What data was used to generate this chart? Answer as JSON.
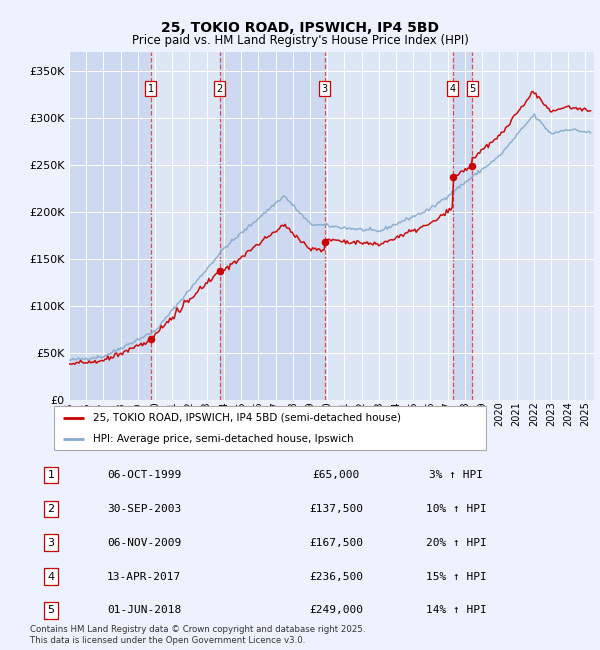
{
  "title_line1": "25, TOKIO ROAD, IPSWICH, IP4 5BD",
  "title_line2": "Price paid vs. HM Land Registry's House Price Index (HPI)",
  "legend_label_red": "25, TOKIO ROAD, IPSWICH, IP4 5BD (semi-detached house)",
  "legend_label_blue": "HPI: Average price, semi-detached house, Ipswich",
  "footer": "Contains HM Land Registry data © Crown copyright and database right 2025.\nThis data is licensed under the Open Government Licence v3.0.",
  "sale_points": [
    {
      "label": "1",
      "date": "06-OCT-1999",
      "price": 65000,
      "pct": "3%",
      "x_year": 1999.76
    },
    {
      "label": "2",
      "date": "30-SEP-2003",
      "price": 137500,
      "pct": "10%",
      "x_year": 2003.75
    },
    {
      "label": "3",
      "date": "06-NOV-2009",
      "price": 167500,
      "pct": "20%",
      "x_year": 2009.85
    },
    {
      "label": "4",
      "date": "13-APR-2017",
      "price": 236500,
      "pct": "15%",
      "x_year": 2017.28
    },
    {
      "label": "5",
      "date": "01-JUN-2018",
      "price": 249000,
      "pct": "14%",
      "x_year": 2018.42
    }
  ],
  "xmin": 1995.0,
  "xmax": 2025.5,
  "ymin": 0,
  "ymax": 370000,
  "yticks": [
    0,
    50000,
    100000,
    150000,
    200000,
    250000,
    300000,
    350000
  ],
  "ytick_labels": [
    "£0",
    "£50K",
    "£100K",
    "£150K",
    "£200K",
    "£250K",
    "£300K",
    "£350K"
  ],
  "background_color": "#eef2ff",
  "plot_bg_color": "#dce6f5",
  "grid_color": "#ffffff",
  "red_color": "#cc0000",
  "blue_color": "#88aacc",
  "vline_color": "#dd3333",
  "label_box_color": "#ffffff",
  "label_box_edge": "#cc0000",
  "shade_colors": [
    "#ccd9f0",
    "#dce6f5"
  ]
}
